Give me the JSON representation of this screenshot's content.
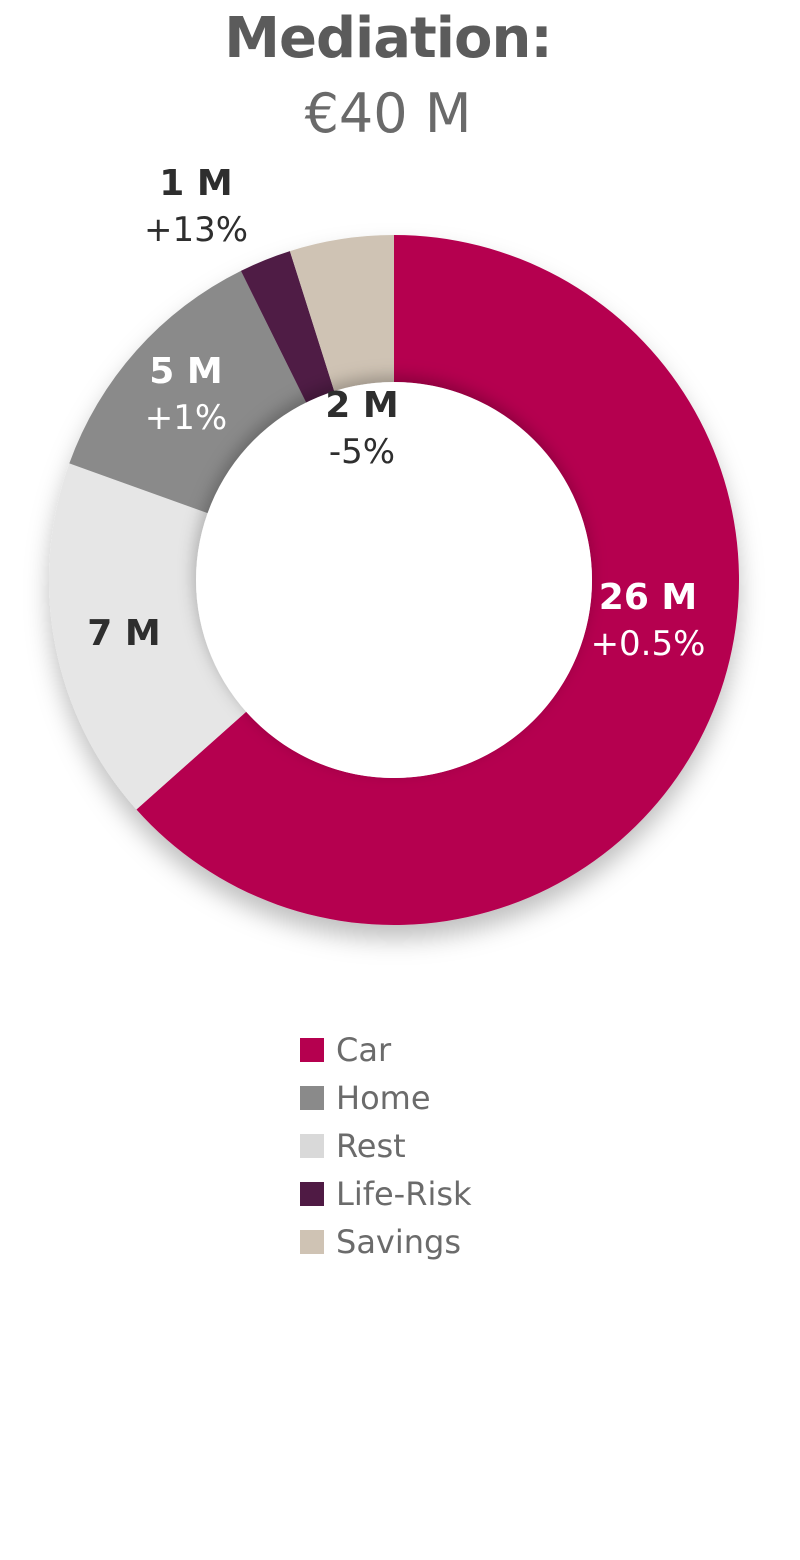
{
  "chart_data": {
    "type": "pie",
    "title": "Mediation:",
    "subtitle": "€40 M",
    "donut": true,
    "legend_position": "bottom-center",
    "slices": [
      {
        "name": "Car",
        "value": 26,
        "label": "26 M",
        "change": "+0.5%",
        "color": "#b5004f"
      },
      {
        "name": "Rest",
        "value": 7,
        "label": "7 M",
        "change": "",
        "color": "#e6e6e6"
      },
      {
        "name": "Home",
        "value": 5,
        "label": "5 M",
        "change": "+1%",
        "color": "#8a8a8a"
      },
      {
        "name": "Life-Risk",
        "value": 1,
        "label": "1 M",
        "change": "+13%",
        "color": "#4f1a44"
      },
      {
        "name": "Savings",
        "value": 2,
        "label": "2 M",
        "change": "-5%",
        "color": "#cfc3b4"
      }
    ],
    "legend": [
      {
        "name": "Car",
        "color": "#b5004f"
      },
      {
        "name": "Home",
        "color": "#8a8a8a"
      },
      {
        "name": "Rest",
        "color": "#d9d9d9"
      },
      {
        "name": "Life-Risk",
        "color": "#4f1a44"
      },
      {
        "name": "Savings",
        "color": "#cfc3b4"
      }
    ]
  }
}
